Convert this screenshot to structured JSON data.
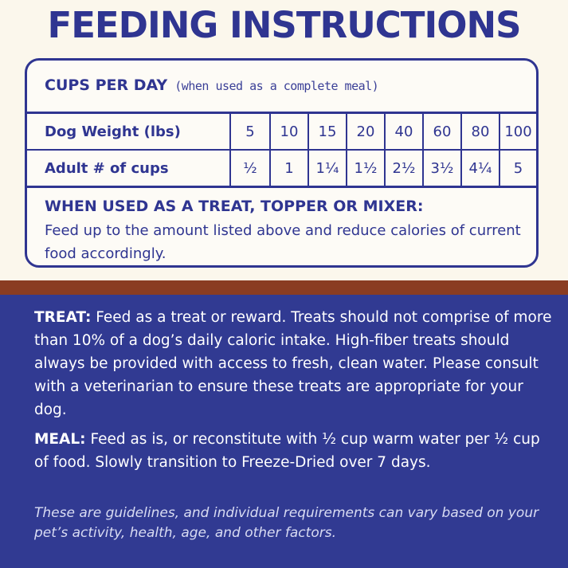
{
  "title": "FEEDING INSTRUCTIONS",
  "cups_header": {
    "label": "CUPS PER DAY",
    "note": "(when used as a complete meal)"
  },
  "table": {
    "weight_label": "Dog Weight (lbs)",
    "weights": [
      "5",
      "10",
      "15",
      "20",
      "40",
      "60",
      "80",
      "100"
    ],
    "cups_label": "Adult # of cups",
    "cups": [
      "½",
      "1",
      "1¼",
      "1½",
      "2½",
      "3½",
      "4¼",
      "5"
    ]
  },
  "treat_topper": {
    "heading": "WHEN USED AS A TREAT, TOPPER OR MIXER:",
    "text": "Feed up to the amount listed above and reduce calories of current food accordingly."
  },
  "treat": {
    "lead": "TREAT:",
    "text": " Feed as a treat or reward. Treats should not comprise of more than 10% of a dog’s daily caloric intake. High-fiber treats should always be provided with access to fresh, clean water. Please consult with a veterinarian to ensure these treats are appropriate for your dog."
  },
  "meal": {
    "lead": "MEAL:",
    "text": " Feed as is, or reconstitute with ½ cup warm water per ½ cup of food. Slowly transition to Freeze-Dried over 7 days."
  },
  "guidelines": "These are guidelines, and individual requirements can vary based on your pet’s activity, health, age, and other factors.",
  "colors": {
    "navy": "#2f3591",
    "cream": "#fbf7ec",
    "rust": "#8a3c22",
    "blue_panel": "#313a92"
  }
}
